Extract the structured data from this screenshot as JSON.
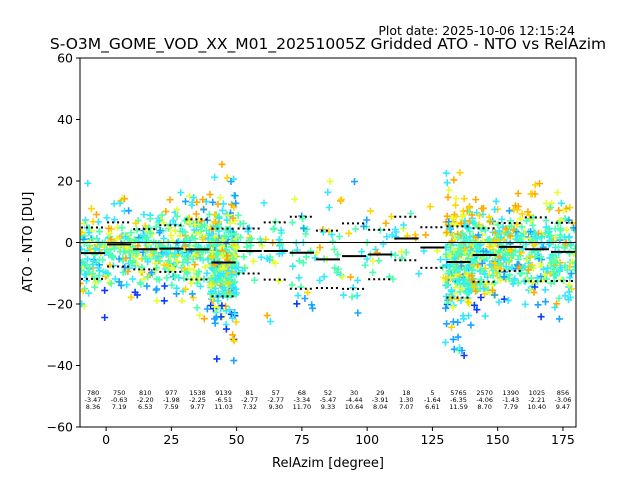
{
  "plot_date": "Plot date: 2025-10-06 12:15:24",
  "chart_data": {
    "type": "scatter",
    "title": "S-O3M_GOME_VOD_XX_M01_20251005Z Gridded ATO - NTO vs RelAzim",
    "xlabel": "RelAzim [degree]",
    "ylabel": "ATO - NTO [DU]",
    "xlim": [
      -10,
      180
    ],
    "ylim": [
      -60,
      60
    ],
    "xticks": [
      0,
      25,
      50,
      75,
      100,
      125,
      150,
      175
    ],
    "yticks": [
      -60,
      -40,
      -20,
      0,
      20,
      40,
      60
    ],
    "grid": false,
    "zero_line": 0,
    "colors": {
      "scatter_palette": [
        "#4dffb0",
        "#33e8ff",
        "#1aa3ff",
        "#0a3cff",
        "#e6ff33",
        "#ffd400",
        "#ffaa00"
      ],
      "median": "#000000",
      "stddev": "#000000"
    },
    "bins": [
      {
        "x0": -10,
        "x1": 0,
        "count": "780",
        "median": "-3.47",
        "stddev": "8.36"
      },
      {
        "x0": 0,
        "x1": 10,
        "count": "750",
        "median": "-0.63",
        "stddev": "7.19"
      },
      {
        "x0": 10,
        "x1": 20,
        "count": "810",
        "median": "-2.20",
        "stddev": "6.53"
      },
      {
        "x0": 20,
        "x1": 30,
        "count": "977",
        "median": "-1.98",
        "stddev": "7.59"
      },
      {
        "x0": 30,
        "x1": 40,
        "count": "1538",
        "median": "-2.25",
        "stddev": "9.77"
      },
      {
        "x0": 40,
        "x1": 50,
        "count": "9139",
        "median": "-6.51",
        "stddev": "11.03"
      },
      {
        "x0": 50,
        "x1": 60,
        "count": "81",
        "median": "-2.77",
        "stddev": "7.32"
      },
      {
        "x0": 60,
        "x1": 70,
        "count": "57",
        "median": "-2.77",
        "stddev": "9.30"
      },
      {
        "x0": 70,
        "x1": 80,
        "count": "68",
        "median": "-3.34",
        "stddev": "11.70"
      },
      {
        "x0": 80,
        "x1": 90,
        "count": "52",
        "median": "-5.47",
        "stddev": "9.33"
      },
      {
        "x0": 90,
        "x1": 100,
        "count": "30",
        "median": "-4.44",
        "stddev": "10.64"
      },
      {
        "x0": 100,
        "x1": 110,
        "count": "29",
        "median": "-3.91",
        "stddev": "8.04"
      },
      {
        "x0": 110,
        "x1": 120,
        "count": "18",
        "median": "1.30",
        "stddev": "7.07"
      },
      {
        "x0": 120,
        "x1": 130,
        "count": "5",
        "median": "-1.64",
        "stddev": "6.61"
      },
      {
        "x0": 130,
        "x1": 140,
        "count": "5765",
        "median": "-6.35",
        "stddev": "11.59"
      },
      {
        "x0": 140,
        "x1": 150,
        "count": "2570",
        "median": "-4.06",
        "stddev": "8.70"
      },
      {
        "x0": 150,
        "x1": 160,
        "count": "1390",
        "median": "-1.43",
        "stddev": "7.79"
      },
      {
        "x0": 160,
        "x1": 170,
        "count": "1025",
        "median": "-2.21",
        "stddev": "10.40"
      },
      {
        "x0": 170,
        "x1": 180,
        "count": "856",
        "median": "-3.06",
        "stddev": "9.47"
      }
    ]
  }
}
